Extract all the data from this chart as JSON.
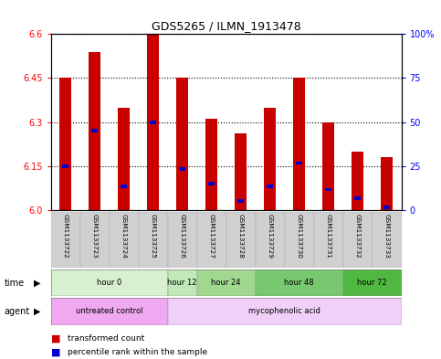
{
  "title": "GDS5265 / ILMN_1913478",
  "samples": [
    "GSM1133722",
    "GSM1133723",
    "GSM1133724",
    "GSM1133725",
    "GSM1133726",
    "GSM1133727",
    "GSM1133728",
    "GSM1133729",
    "GSM1133730",
    "GSM1133731",
    "GSM1133732",
    "GSM1133733"
  ],
  "red_values": [
    6.45,
    6.54,
    6.35,
    6.6,
    6.45,
    6.31,
    6.26,
    6.35,
    6.45,
    6.3,
    6.2,
    6.18
  ],
  "blue_values": [
    6.15,
    6.27,
    6.08,
    6.3,
    6.14,
    6.09,
    6.03,
    6.08,
    6.16,
    6.07,
    6.04,
    6.01
  ],
  "ymin": 6.0,
  "ymax": 6.6,
  "yticks_left": [
    6.0,
    6.15,
    6.3,
    6.45,
    6.6
  ],
  "yticks_right_labels": [
    "0",
    "25",
    "50",
    "75",
    "100%"
  ],
  "yticks_right_vals": [
    6.0,
    6.15,
    6.3,
    6.45,
    6.6
  ],
  "time_groups": [
    {
      "label": "hour 0",
      "start": 0,
      "end": 3,
      "color": "#d8f0d0"
    },
    {
      "label": "hour 12",
      "start": 4,
      "end": 4,
      "color": "#c0e8b8"
    },
    {
      "label": "hour 24",
      "start": 5,
      "end": 6,
      "color": "#a0d890"
    },
    {
      "label": "hour 48",
      "start": 7,
      "end": 9,
      "color": "#78c870"
    },
    {
      "label": "hour 72",
      "start": 10,
      "end": 11,
      "color": "#50b840"
    }
  ],
  "agent_groups": [
    {
      "label": "untreated control",
      "start": 0,
      "end": 3,
      "color": "#f0a8f0"
    },
    {
      "label": "mycophenolic acid",
      "start": 4,
      "end": 11,
      "color": "#f0d0f8"
    }
  ],
  "bar_color_red": "#c80000",
  "bar_color_blue": "#0000cc",
  "bar_width": 0.4,
  "sample_bg_color": "#d0d0d0"
}
